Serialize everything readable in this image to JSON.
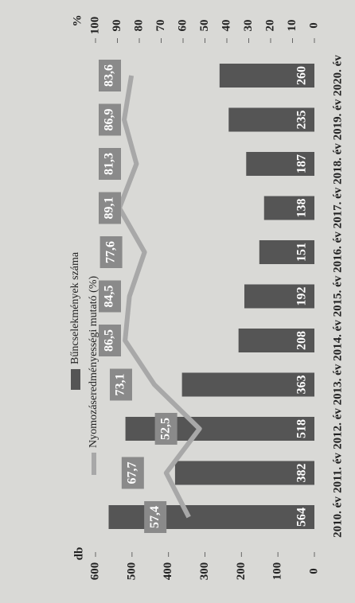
{
  "chart_data": {
    "type": "bar-line",
    "categories": [
      "2010. év",
      "2011. év",
      "2012. év",
      "2013. év",
      "2014. év",
      "2015. év",
      "2016. év",
      "2017. év",
      "2018. év",
      "2019. év",
      "2020. év"
    ],
    "ylabel": "db",
    "y2label": "%",
    "series": [
      {
        "name": "Bűncselekmények száma",
        "color": "#555555",
        "type": "bar",
        "values": [
          564,
          382,
          518,
          363,
          208,
          192,
          151,
          138,
          187,
          235,
          260
        ]
      },
      {
        "name": "Nyomozáseredményességi mutató (%)",
        "color": "#a8a8a8",
        "type": "line",
        "axis": "y2",
        "values": [
          57.4,
          67.7,
          52.5,
          73.1,
          86.5,
          84.5,
          77.6,
          89.1,
          81.3,
          86.9,
          83.6
        ],
        "value_labels": [
          "57,4",
          "67,7",
          "52,5",
          "73,1",
          "86,5",
          "84,5",
          "77,6",
          "89,1",
          "81,3",
          "86,9",
          "83,6"
        ]
      }
    ],
    "ylim": [
      0,
      600
    ],
    "yticks": [
      0,
      100,
      200,
      300,
      400,
      500,
      600
    ],
    "y2lim": [
      0,
      100
    ],
    "y2ticks": [
      0,
      10,
      20,
      30,
      40,
      50,
      60,
      70,
      80,
      90,
      100
    ]
  }
}
